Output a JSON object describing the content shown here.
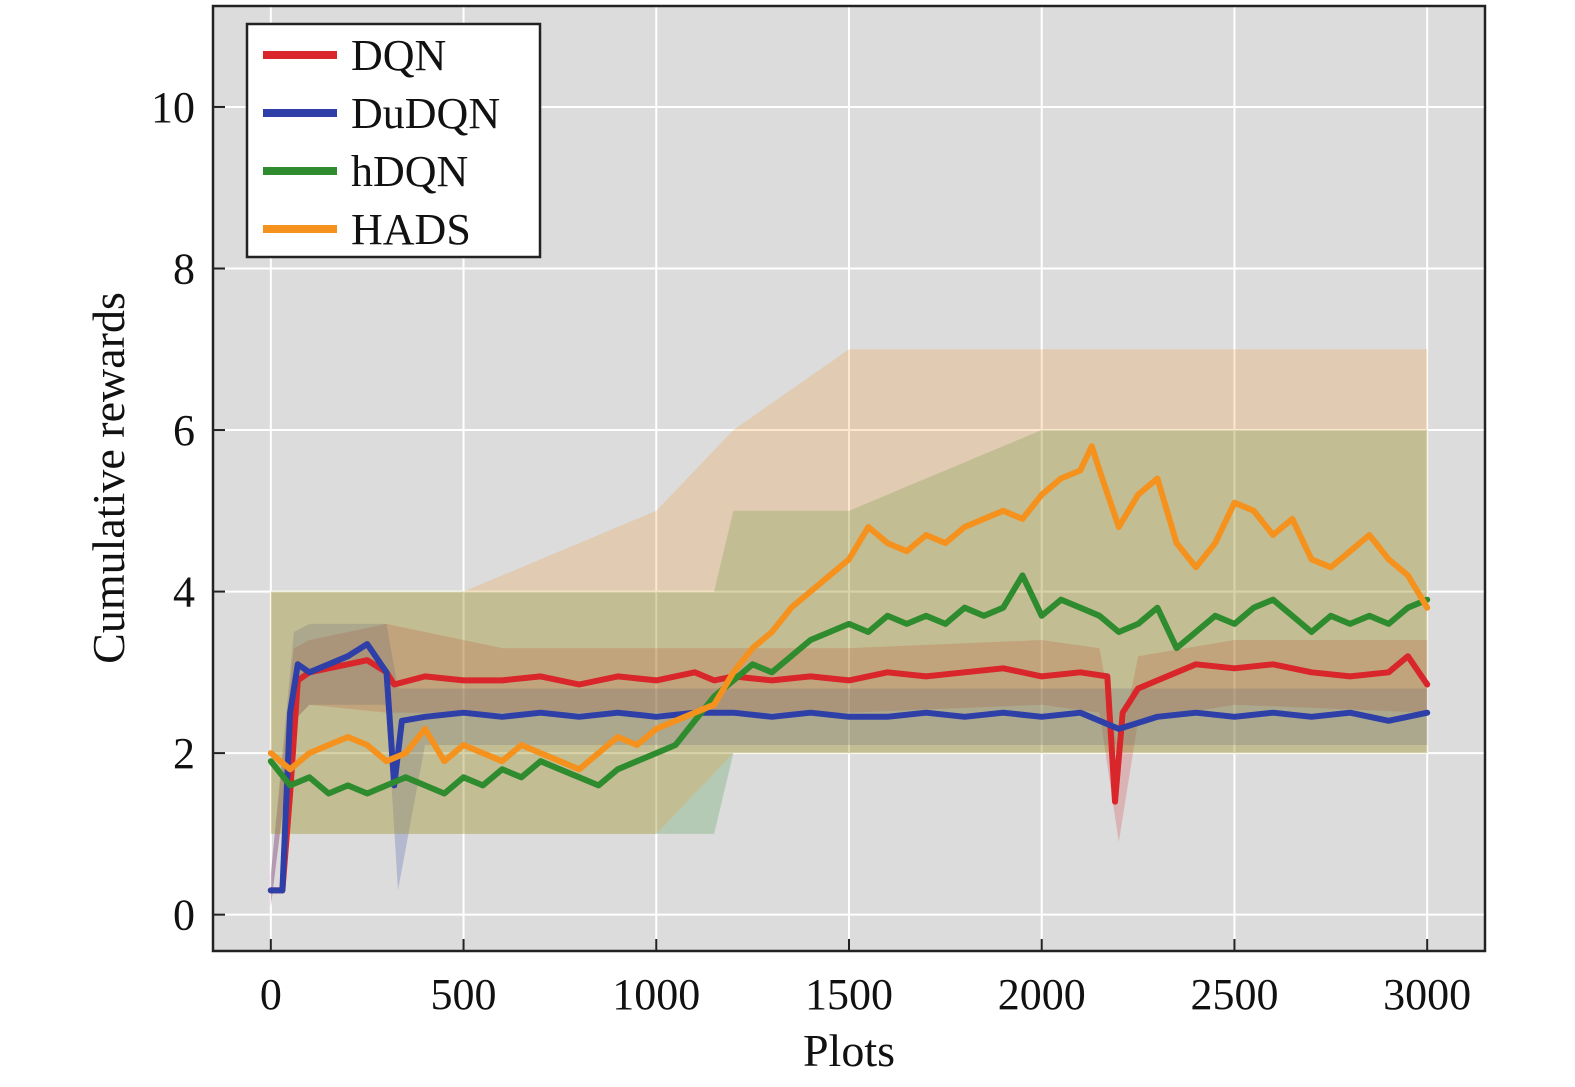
{
  "chart_data": {
    "type": "line",
    "title": "",
    "xlabel": "Plots",
    "ylabel": "Cumulative rewards",
    "xlim": [
      -150,
      3150
    ],
    "ylim": [
      -0.45,
      11.25
    ],
    "xticks": [
      0,
      500,
      1000,
      1500,
      2000,
      2500,
      3000
    ],
    "yticks": [
      0,
      2,
      4,
      6,
      8,
      10
    ],
    "grid": true,
    "legend_position": "top-left",
    "background": "#dcdcdc",
    "series": [
      {
        "name": "DQN",
        "color": "#d8262a",
        "x": [
          0,
          30,
          50,
          70,
          100,
          150,
          200,
          250,
          300,
          320,
          400,
          500,
          600,
          700,
          800,
          900,
          1000,
          1100,
          1150,
          1200,
          1300,
          1400,
          1500,
          1600,
          1700,
          1800,
          1900,
          2000,
          2100,
          2170,
          2190,
          2210,
          2250,
          2300,
          2400,
          2500,
          2600,
          2700,
          2800,
          2900,
          2950,
          3000
        ],
        "y": [
          0.3,
          0.3,
          1.5,
          2.9,
          3.0,
          3.05,
          3.1,
          3.15,
          3.0,
          2.85,
          2.95,
          2.9,
          2.9,
          2.95,
          2.85,
          2.95,
          2.9,
          3.0,
          2.9,
          2.95,
          2.9,
          2.95,
          2.9,
          3.0,
          2.95,
          3.0,
          3.05,
          2.95,
          3.0,
          2.95,
          1.4,
          2.5,
          2.8,
          2.9,
          3.1,
          3.05,
          3.1,
          3.0,
          2.95,
          3.0,
          3.2,
          2.85
        ]
      },
      {
        "name": "DuDQN",
        "color": "#2e3fa8",
        "x": [
          0,
          30,
          50,
          70,
          100,
          150,
          200,
          250,
          300,
          320,
          340,
          400,
          500,
          600,
          700,
          800,
          900,
          1000,
          1100,
          1200,
          1300,
          1400,
          1500,
          1600,
          1700,
          1800,
          1900,
          2000,
          2100,
          2200,
          2300,
          2400,
          2500,
          2600,
          2700,
          2800,
          2900,
          3000
        ],
        "y": [
          0.3,
          0.3,
          2.5,
          3.1,
          3.0,
          3.1,
          3.2,
          3.35,
          3.0,
          1.6,
          2.4,
          2.45,
          2.5,
          2.45,
          2.5,
          2.45,
          2.5,
          2.45,
          2.5,
          2.5,
          2.45,
          2.5,
          2.45,
          2.45,
          2.5,
          2.45,
          2.5,
          2.45,
          2.5,
          2.3,
          2.45,
          2.5,
          2.45,
          2.5,
          2.45,
          2.5,
          2.4,
          2.5
        ]
      },
      {
        "name": "hDQN",
        "color": "#2e8b2e",
        "x": [
          0,
          50,
          100,
          150,
          200,
          250,
          300,
          350,
          400,
          450,
          500,
          550,
          600,
          650,
          700,
          750,
          800,
          850,
          900,
          950,
          1000,
          1050,
          1100,
          1150,
          1200,
          1250,
          1300,
          1350,
          1400,
          1450,
          1500,
          1550,
          1600,
          1650,
          1700,
          1750,
          1800,
          1850,
          1900,
          1950,
          2000,
          2050,
          2100,
          2150,
          2200,
          2250,
          2300,
          2350,
          2400,
          2450,
          2500,
          2550,
          2600,
          2650,
          2700,
          2750,
          2800,
          2850,
          2900,
          2950,
          3000
        ],
        "y": [
          1.9,
          1.6,
          1.7,
          1.5,
          1.6,
          1.5,
          1.6,
          1.7,
          1.6,
          1.5,
          1.7,
          1.6,
          1.8,
          1.7,
          1.9,
          1.8,
          1.7,
          1.6,
          1.8,
          1.9,
          2.0,
          2.1,
          2.4,
          2.7,
          2.9,
          3.1,
          3.0,
          3.2,
          3.4,
          3.5,
          3.6,
          3.5,
          3.7,
          3.6,
          3.7,
          3.6,
          3.8,
          3.7,
          3.8,
          4.2,
          3.7,
          3.9,
          3.8,
          3.7,
          3.5,
          3.6,
          3.8,
          3.3,
          3.5,
          3.7,
          3.6,
          3.8,
          3.9,
          3.7,
          3.5,
          3.7,
          3.6,
          3.7,
          3.6,
          3.8,
          3.9
        ]
      },
      {
        "name": "HADS",
        "color": "#f5921e",
        "x": [
          0,
          50,
          100,
          150,
          200,
          250,
          300,
          350,
          400,
          450,
          500,
          550,
          600,
          650,
          700,
          750,
          800,
          850,
          900,
          950,
          1000,
          1050,
          1100,
          1150,
          1200,
          1250,
          1300,
          1350,
          1400,
          1450,
          1500,
          1550,
          1600,
          1650,
          1700,
          1750,
          1800,
          1850,
          1900,
          1950,
          2000,
          2050,
          2100,
          2130,
          2150,
          2200,
          2250,
          2300,
          2350,
          2400,
          2450,
          2500,
          2550,
          2600,
          2650,
          2700,
          2750,
          2800,
          2850,
          2900,
          2950,
          3000
        ],
        "y": [
          2.0,
          1.8,
          2.0,
          2.1,
          2.2,
          2.1,
          1.9,
          2.0,
          2.3,
          1.9,
          2.1,
          2.0,
          1.9,
          2.1,
          2.0,
          1.9,
          1.8,
          2.0,
          2.2,
          2.1,
          2.3,
          2.4,
          2.5,
          2.6,
          3.0,
          3.3,
          3.5,
          3.8,
          4.0,
          4.2,
          4.4,
          4.8,
          4.6,
          4.5,
          4.7,
          4.6,
          4.8,
          4.9,
          5.0,
          4.9,
          5.2,
          5.4,
          5.5,
          5.8,
          5.5,
          4.8,
          5.2,
          5.4,
          4.6,
          4.3,
          4.6,
          5.1,
          5.0,
          4.7,
          4.9,
          4.4,
          4.3,
          4.5,
          4.7,
          4.4,
          4.2,
          3.8
        ]
      }
    ],
    "shaded_ranges": [
      {
        "series": "DQN",
        "color": "#d8262a",
        "x": [
          0,
          60,
          100,
          300,
          600,
          1000,
          1500,
          2000,
          2150,
          2200,
          2250,
          2500,
          3000
        ],
        "low": [
          0.1,
          2.4,
          2.6,
          2.5,
          2.5,
          2.5,
          2.5,
          2.6,
          2.5,
          0.9,
          2.4,
          2.6,
          2.5
        ],
        "high": [
          0.5,
          3.3,
          3.4,
          3.6,
          3.3,
          3.3,
          3.3,
          3.4,
          3.3,
          2.0,
          3.2,
          3.4,
          3.4
        ]
      },
      {
        "series": "DuDQN",
        "color": "#2e3fa8",
        "x": [
          0,
          60,
          100,
          300,
          330,
          400,
          1000,
          1500,
          2000,
          2500,
          3000
        ],
        "low": [
          0.1,
          2.4,
          2.6,
          2.6,
          0.3,
          2.1,
          2.1,
          2.1,
          2.1,
          2.1,
          2.1
        ],
        "high": [
          0.5,
          3.5,
          3.6,
          3.6,
          2.8,
          2.8,
          2.8,
          2.8,
          2.8,
          2.8,
          2.8
        ]
      },
      {
        "series": "hDQN",
        "color": "#2e8b2e",
        "x": [
          0,
          500,
          1000,
          1150,
          1200,
          1500,
          2000,
          2500,
          3000
        ],
        "low": [
          1.0,
          1.0,
          1.0,
          1.0,
          2.0,
          2.0,
          2.0,
          2.0,
          2.0
        ],
        "high": [
          4.0,
          4.0,
          4.0,
          4.0,
          5.0,
          5.0,
          6.0,
          6.0,
          6.0
        ]
      },
      {
        "series": "HADS",
        "color": "#f5921e",
        "x": [
          0,
          500,
          1000,
          1200,
          1500,
          2000,
          2500,
          3000
        ],
        "low": [
          1.0,
          1.0,
          1.0,
          2.0,
          2.0,
          2.0,
          2.0,
          2.0
        ],
        "high": [
          4.0,
          4.0,
          5.0,
          6.0,
          7.0,
          7.0,
          7.0,
          7.0
        ]
      }
    ]
  }
}
